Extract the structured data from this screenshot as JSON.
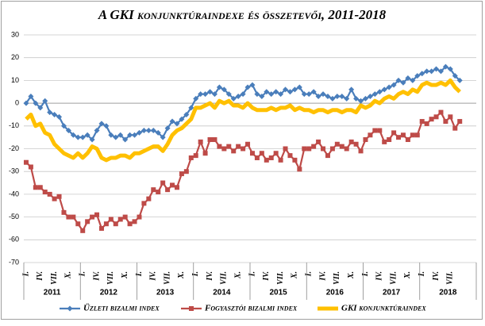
{
  "chart_data": {
    "type": "line",
    "title": "A GKI konjunktúraindexe és összetevői, 2011-2018",
    "categories": [
      "I.",
      null,
      null,
      "IV.",
      null,
      null,
      "VII.",
      null,
      null,
      "X.",
      null,
      null,
      "I.",
      null,
      null,
      "IV.",
      null,
      null,
      "VII.",
      null,
      null,
      "X.",
      null,
      null,
      "I.",
      null,
      null,
      "IV.",
      null,
      null,
      "VII.",
      null,
      null,
      "X.",
      null,
      null,
      "I.",
      null,
      null,
      "IV.",
      null,
      null,
      "VII.",
      null,
      null,
      "X.",
      null,
      null,
      "I.",
      null,
      null,
      "IV.",
      null,
      null,
      "VII.",
      null,
      null,
      "X.",
      null,
      null,
      "I.",
      null,
      null,
      "IV.",
      null,
      null,
      "VII.",
      null,
      null,
      "X.",
      null,
      null,
      "I.",
      null,
      null,
      "IV.",
      null,
      null,
      "VII.",
      null,
      null,
      "X.",
      null,
      null,
      "I.",
      null,
      null,
      "IV.",
      null,
      null,
      "VII.",
      null,
      null
    ],
    "years": [
      "2011",
      "2012",
      "2013",
      "2014",
      "2015",
      "2016",
      "2017",
      "2018"
    ],
    "ylim": [
      -70,
      30
    ],
    "yticks": [
      -70,
      -60,
      -50,
      -40,
      -30,
      -20,
      -10,
      0,
      10,
      20,
      30
    ],
    "grid": true,
    "series": [
      {
        "name": "Üzleti bizalmi index",
        "color": "#4a7ebb",
        "marker": "diamond",
        "values": [
          0,
          3,
          0,
          -2,
          1,
          -4,
          -5,
          -6,
          -10,
          -12,
          -14,
          -15,
          -15,
          -14,
          -16,
          -12,
          -9,
          -10,
          -14,
          -15,
          -14,
          -16,
          -14,
          -14,
          -13,
          -12,
          -12,
          -12,
          -13,
          -15,
          -11,
          -8,
          -9,
          -7,
          -5,
          -2,
          2,
          4,
          4,
          5,
          4,
          7,
          6,
          4,
          2,
          3,
          4,
          7,
          8,
          4,
          3,
          5,
          4,
          5,
          4,
          6,
          5,
          6,
          7,
          4,
          4,
          5,
          3,
          4,
          3,
          2,
          3,
          3,
          2,
          6,
          2,
          1,
          2,
          3,
          4,
          5,
          6,
          7,
          8,
          10,
          9,
          11,
          10,
          12,
          13,
          14,
          14,
          15,
          14,
          16,
          15,
          12,
          10
        ]
      },
      {
        "name": "Fogyasztói bizalmi index",
        "color": "#be4b48",
        "marker": "square",
        "values": [
          -26,
          -28,
          -37,
          -37,
          -39,
          -40,
          -42,
          -41,
          -48,
          -50,
          -50,
          -53,
          -56,
          -52,
          -50,
          -49,
          -55,
          -53,
          -51,
          -53,
          -51,
          -50,
          -53,
          -52,
          -50,
          -44,
          -42,
          -38,
          -39,
          -35,
          -38,
          -36,
          -37,
          -31,
          -30,
          -24,
          -23,
          -17,
          -22,
          -16,
          -16,
          -19,
          -20,
          -19,
          -21,
          -19,
          -20,
          -18,
          -22,
          -24,
          -22,
          -25,
          -24,
          -22,
          -25,
          -20,
          -23,
          -25,
          -29,
          -20,
          -20,
          -19,
          -17,
          -20,
          -23,
          -20,
          -18,
          -19,
          -20,
          -17,
          -18,
          -21,
          -16,
          -14,
          -12,
          -12,
          -17,
          -16,
          -13,
          -15,
          -14,
          -16,
          -14,
          -14,
          -8,
          -9,
          -7,
          -6,
          -4,
          -8,
          -6,
          -11,
          -8
        ]
      },
      {
        "name": "GKI konjunktúraindex",
        "color": "#ffc000",
        "marker": "none",
        "values": [
          -7,
          -5,
          -10,
          -9,
          -13,
          -14,
          -18,
          -20,
          -22,
          -23,
          -24,
          -22,
          -24,
          -22,
          -19,
          -20,
          -24,
          -25,
          -24,
          -24,
          -23,
          -23,
          -24,
          -22,
          -22,
          -21,
          -20,
          -19,
          -19,
          -21,
          -18,
          -14,
          -12,
          -11,
          -9,
          -7,
          -2,
          -2,
          -1,
          0,
          -2,
          1,
          0,
          1,
          -1,
          -1,
          -2,
          0,
          -2,
          -3,
          -3,
          -3,
          -2,
          -3,
          -2,
          -2,
          -1,
          -3,
          -2,
          -3,
          -3,
          -4,
          -3,
          -3,
          -4,
          -3,
          -3,
          -4,
          -3,
          -3,
          -4,
          -1,
          -2,
          -1,
          1,
          0,
          2,
          3,
          2,
          4,
          5,
          4,
          6,
          5,
          8,
          9,
          8,
          8,
          9,
          8,
          10,
          7,
          5
        ]
      }
    ]
  }
}
